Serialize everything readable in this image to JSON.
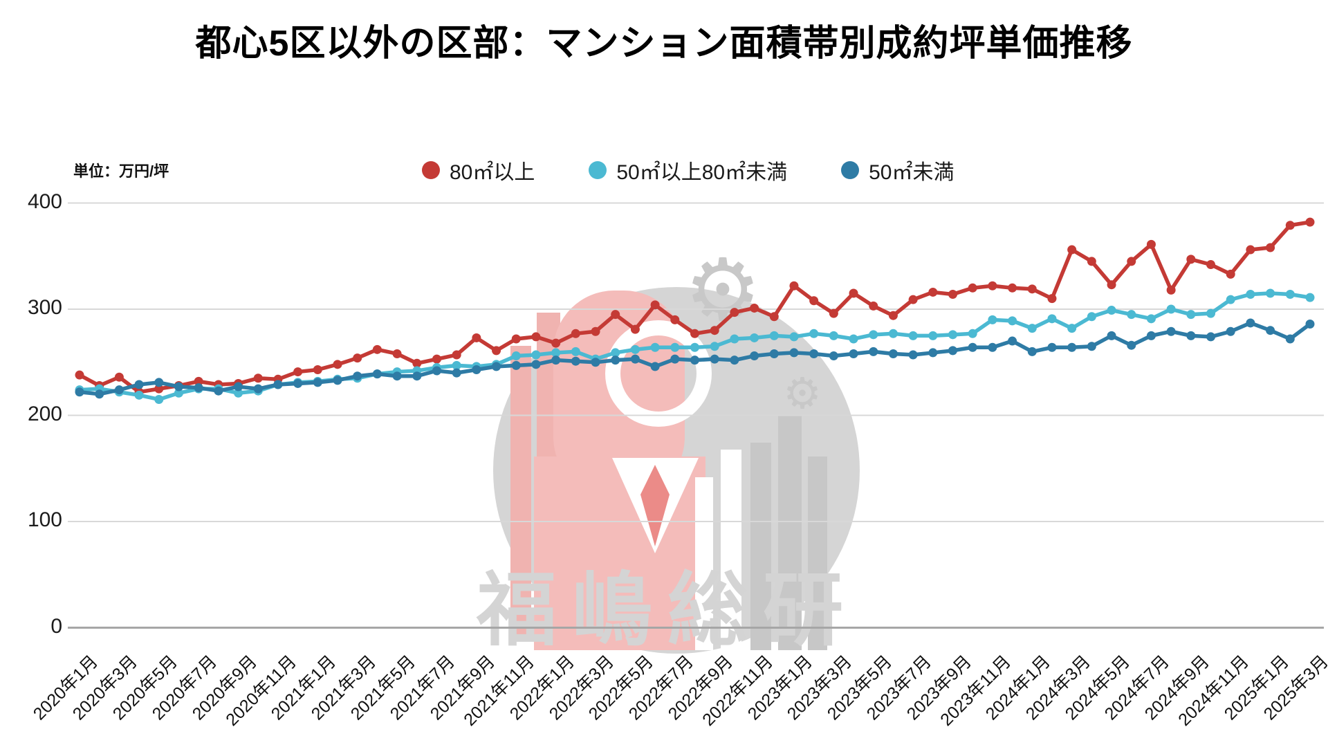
{
  "page": {
    "title": "都心5区以外の区部：マンション面積帯別成約坪単価推移",
    "unit_label": "単位：万円/坪"
  },
  "legend": {
    "items": [
      {
        "label": "80㎡以上",
        "color": "#c43a35"
      },
      {
        "label": "50㎡以上80㎡未満",
        "color": "#4bb9d2"
      },
      {
        "label": "50㎡未満",
        "color": "#2e7ba5"
      }
    ]
  },
  "watermark": {
    "text": "福嶋総研"
  },
  "chart_data": {
    "type": "line",
    "title": "都心5区以外の区部：マンション面積帯別成約坪単価推移",
    "ylabel": "単位：万円/坪",
    "ylim": [
      0,
      400
    ],
    "grid": true,
    "legend_position": "top",
    "y_ticks": [
      400,
      300,
      200,
      100,
      0
    ],
    "x": [
      "2020年1月",
      "2020年2月",
      "2020年3月",
      "2020年4月",
      "2020年5月",
      "2020年6月",
      "2020年7月",
      "2020年8月",
      "2020年9月",
      "2020年10月",
      "2020年11月",
      "2020年12月",
      "2021年1月",
      "2021年2月",
      "2021年3月",
      "2021年4月",
      "2021年5月",
      "2021年6月",
      "2021年7月",
      "2021年8月",
      "2021年9月",
      "2021年10月",
      "2021年11月",
      "2021年12月",
      "2022年1月",
      "2022年2月",
      "2022年3月",
      "2022年4月",
      "2022年5月",
      "2022年6月",
      "2022年7月",
      "2022年8月",
      "2022年9月",
      "2022年10月",
      "2022年11月",
      "2022年12月",
      "2023年1月",
      "2023年2月",
      "2023年3月",
      "2023年4月",
      "2023年5月",
      "2023年6月",
      "2023年7月",
      "2023年8月",
      "2023年9月",
      "2023年10月",
      "2023年11月",
      "2023年12月",
      "2024年1月",
      "2024年2月",
      "2024年3月",
      "2024年4月",
      "2024年5月",
      "2024年6月",
      "2024年7月",
      "2024年8月",
      "2024年9月",
      "2024年10月",
      "2024年11月",
      "2024年12月",
      "2025年1月",
      "2025年2月",
      "2025年3月"
    ],
    "x_tick_labels": [
      "2020年1月",
      "2020年3月",
      "2020年5月",
      "2020年7月",
      "2020年9月",
      "2020年11月",
      "2021年1月",
      "2021年3月",
      "2021年5月",
      "2021年7月",
      "2021年9月",
      "2021年11月",
      "2022年1月",
      "2022年3月",
      "2022年5月",
      "2022年7月",
      "2022年9月",
      "2022年11月",
      "2023年1月",
      "2023年3月",
      "2023年5月",
      "2023年7月",
      "2023年9月",
      "2023年11月",
      "2024年1月",
      "2024年3月",
      "2024年5月",
      "2024年7月",
      "2024年9月",
      "2024年11月",
      "2025年1月",
      "2025年3月"
    ],
    "series": [
      {
        "name": "80㎡以上",
        "color": "#c43a35",
        "values": [
          238,
          228,
          236,
          222,
          225,
          228,
          232,
          229,
          230,
          235,
          234,
          241,
          243,
          248,
          254,
          262,
          258,
          249,
          253,
          257,
          273,
          261,
          272,
          274,
          268,
          277,
          279,
          295,
          281,
          304,
          290,
          277,
          280,
          297,
          301,
          293,
          322,
          308,
          296,
          315,
          303,
          294,
          309,
          316,
          314,
          320,
          322,
          320,
          319,
          310,
          356,
          345,
          323,
          345,
          361,
          318,
          347,
          342,
          333,
          356,
          358,
          379,
          382
        ]
      },
      {
        "name": "50㎡以上80㎡未満",
        "color": "#4bb9d2",
        "values": [
          224,
          225,
          222,
          219,
          215,
          221,
          225,
          225,
          221,
          223,
          229,
          231,
          232,
          234,
          235,
          239,
          241,
          242,
          245,
          247,
          246,
          248,
          256,
          257,
          259,
          260,
          253,
          259,
          262,
          264,
          264,
          264,
          265,
          272,
          273,
          275,
          274,
          277,
          275,
          272,
          276,
          277,
          275,
          275,
          276,
          277,
          290,
          289,
          282,
          291,
          282,
          293,
          299,
          295,
          291,
          300,
          295,
          296,
          309,
          314,
          315,
          314,
          311
        ]
      },
      {
        "name": "50㎡未満",
        "color": "#2e7ba5",
        "values": [
          222,
          220,
          224,
          229,
          231,
          227,
          226,
          223,
          227,
          225,
          229,
          230,
          231,
          233,
          237,
          239,
          237,
          237,
          242,
          240,
          243,
          246,
          247,
          248,
          252,
          251,
          250,
          252,
          253,
          246,
          253,
          252,
          253,
          252,
          256,
          258,
          259,
          258,
          256,
          258,
          260,
          258,
          257,
          259,
          261,
          264,
          264,
          270,
          260,
          264,
          264,
          265,
          275,
          266,
          275,
          279,
          275,
          274,
          279,
          287,
          280,
          272,
          286
        ]
      }
    ]
  }
}
